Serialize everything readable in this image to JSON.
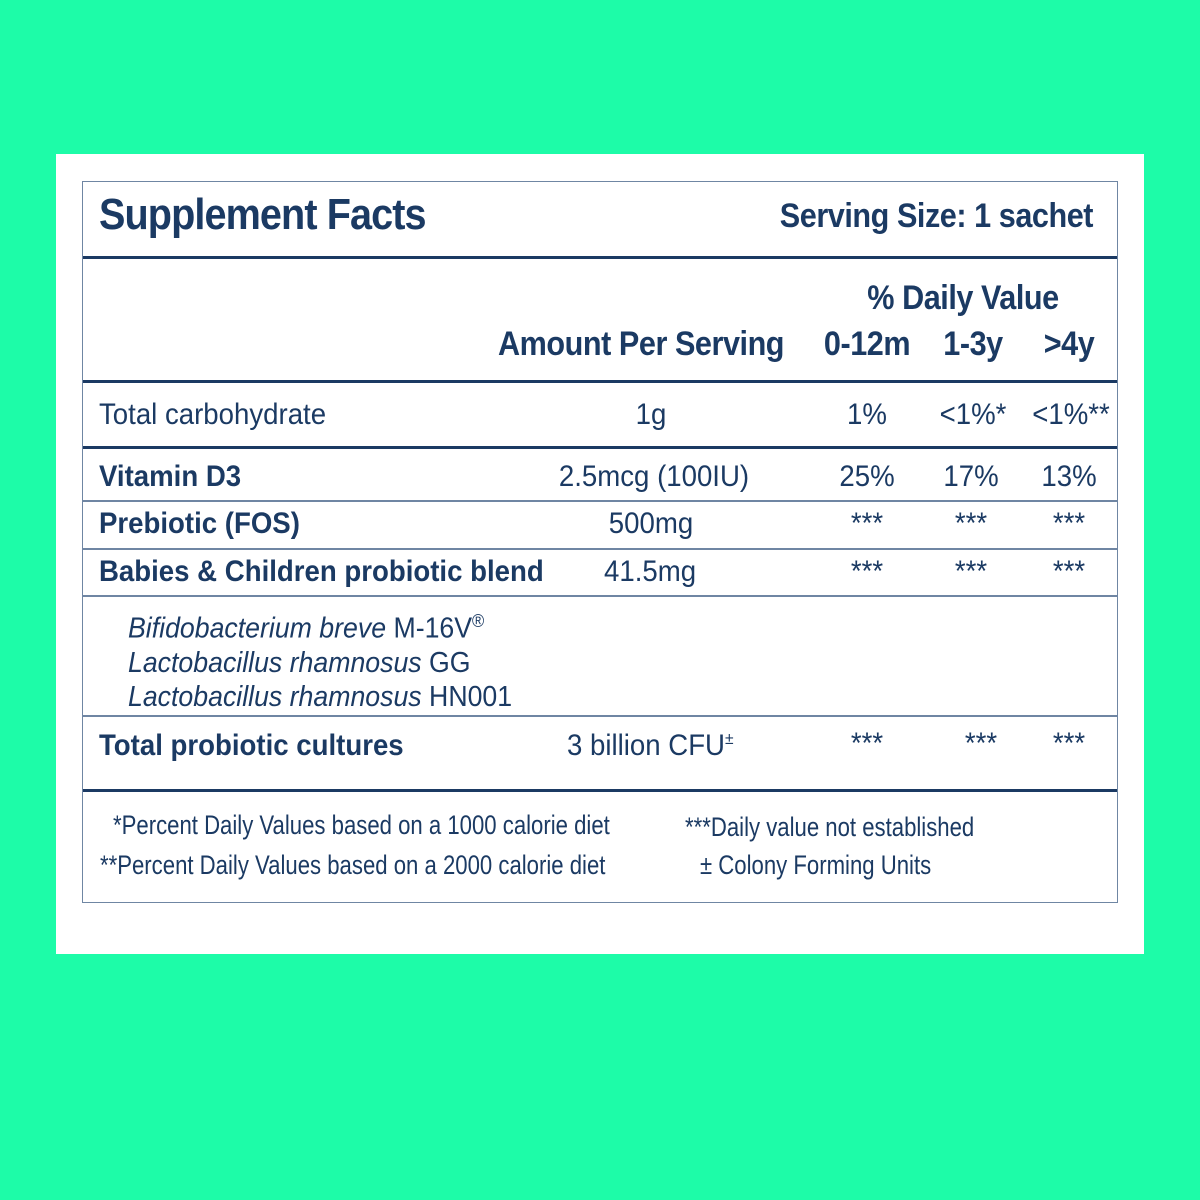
{
  "header": {
    "title": "Supplement Facts",
    "serving_size": "Serving Size: 1 sachet"
  },
  "columns": {
    "daily_value_heading": "% Daily Value",
    "amount_heading": "Amount Per Serving",
    "age_groups": [
      "0-12m",
      "1-3y",
      ">4y"
    ]
  },
  "rows": [
    {
      "name": "Total carbohydrate",
      "amount": "1g",
      "dv": [
        "1%",
        "<1%*",
        "<1%**"
      ]
    },
    {
      "name": "Vitamin D3",
      "amount": "2.5mcg (100IU)",
      "dv": [
        "25%",
        "17%",
        "13%"
      ]
    },
    {
      "name": "Prebiotic (FOS)",
      "amount": "500mg",
      "dv": [
        "***",
        "***",
        "***"
      ]
    },
    {
      "name": "Babies & Children probiotic blend",
      "amount": "41.5mg",
      "dv": [
        "***",
        "***",
        "***"
      ]
    },
    {
      "name": "Total probiotic cultures",
      "amount": "3 billion CFU",
      "amount_mark": "±",
      "dv": [
        "***",
        "***",
        "***"
      ]
    }
  ],
  "strains": [
    {
      "name": "Bifidobacterium breve",
      "strain": "M-16V",
      "mark": "®"
    },
    {
      "name": "Lactobacillus rhamnosus",
      "strain": "GG",
      "mark": ""
    },
    {
      "name": "Lactobacillus rhamnosus",
      "strain": "HN001",
      "mark": ""
    }
  ],
  "footnotes": {
    "left": [
      "*Percent Daily Values based on a 1000 calorie diet",
      "**Percent Daily Values based on a 2000 calorie diet"
    ],
    "right": [
      "***Daily value not established",
      "± Colony Forming Units"
    ]
  },
  "colors": {
    "background": "#1dfca8",
    "text": "#1b3a63",
    "rule": "#6f86a3"
  }
}
